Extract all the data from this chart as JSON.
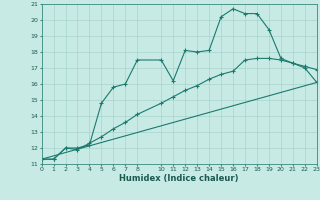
{
  "xlabel": "Humidex (Indice chaleur)",
  "ylabel": "",
  "bg_color": "#c8eae4",
  "grid_color": "#a8d4ce",
  "line_color": "#1a7a6e",
  "xlim": [
    0,
    23
  ],
  "ylim": [
    11,
    21
  ],
  "xticks": [
    0,
    1,
    2,
    3,
    4,
    5,
    6,
    7,
    8,
    10,
    11,
    12,
    13,
    14,
    15,
    16,
    17,
    18,
    19,
    20,
    21,
    22,
    23
  ],
  "yticks": [
    11,
    12,
    13,
    14,
    15,
    16,
    17,
    18,
    19,
    20,
    21
  ],
  "line1_x": [
    0,
    1,
    2,
    3,
    4,
    5,
    6,
    7,
    8,
    10,
    11,
    12,
    13,
    14,
    15,
    16,
    17,
    18,
    19,
    20,
    21,
    22,
    23
  ],
  "line1_y": [
    11.3,
    11.3,
    12.0,
    12.0,
    12.2,
    14.8,
    15.8,
    16.0,
    17.5,
    17.5,
    16.2,
    18.1,
    18.0,
    18.1,
    20.2,
    20.7,
    20.4,
    20.4,
    19.4,
    17.6,
    17.3,
    17.0,
    16.1
  ],
  "line2_x": [
    0,
    23
  ],
  "line2_y": [
    11.3,
    16.1
  ],
  "line3_x": [
    0,
    1,
    2,
    3,
    4,
    5,
    6,
    7,
    8,
    10,
    11,
    12,
    13,
    14,
    15,
    16,
    17,
    18,
    19,
    20,
    21,
    22,
    23
  ],
  "line3_y": [
    11.3,
    11.3,
    12.0,
    11.9,
    12.3,
    12.7,
    13.2,
    13.6,
    14.1,
    14.8,
    15.2,
    15.6,
    15.9,
    16.3,
    16.6,
    16.8,
    17.5,
    17.6,
    17.6,
    17.5,
    17.3,
    17.1,
    16.9
  ]
}
